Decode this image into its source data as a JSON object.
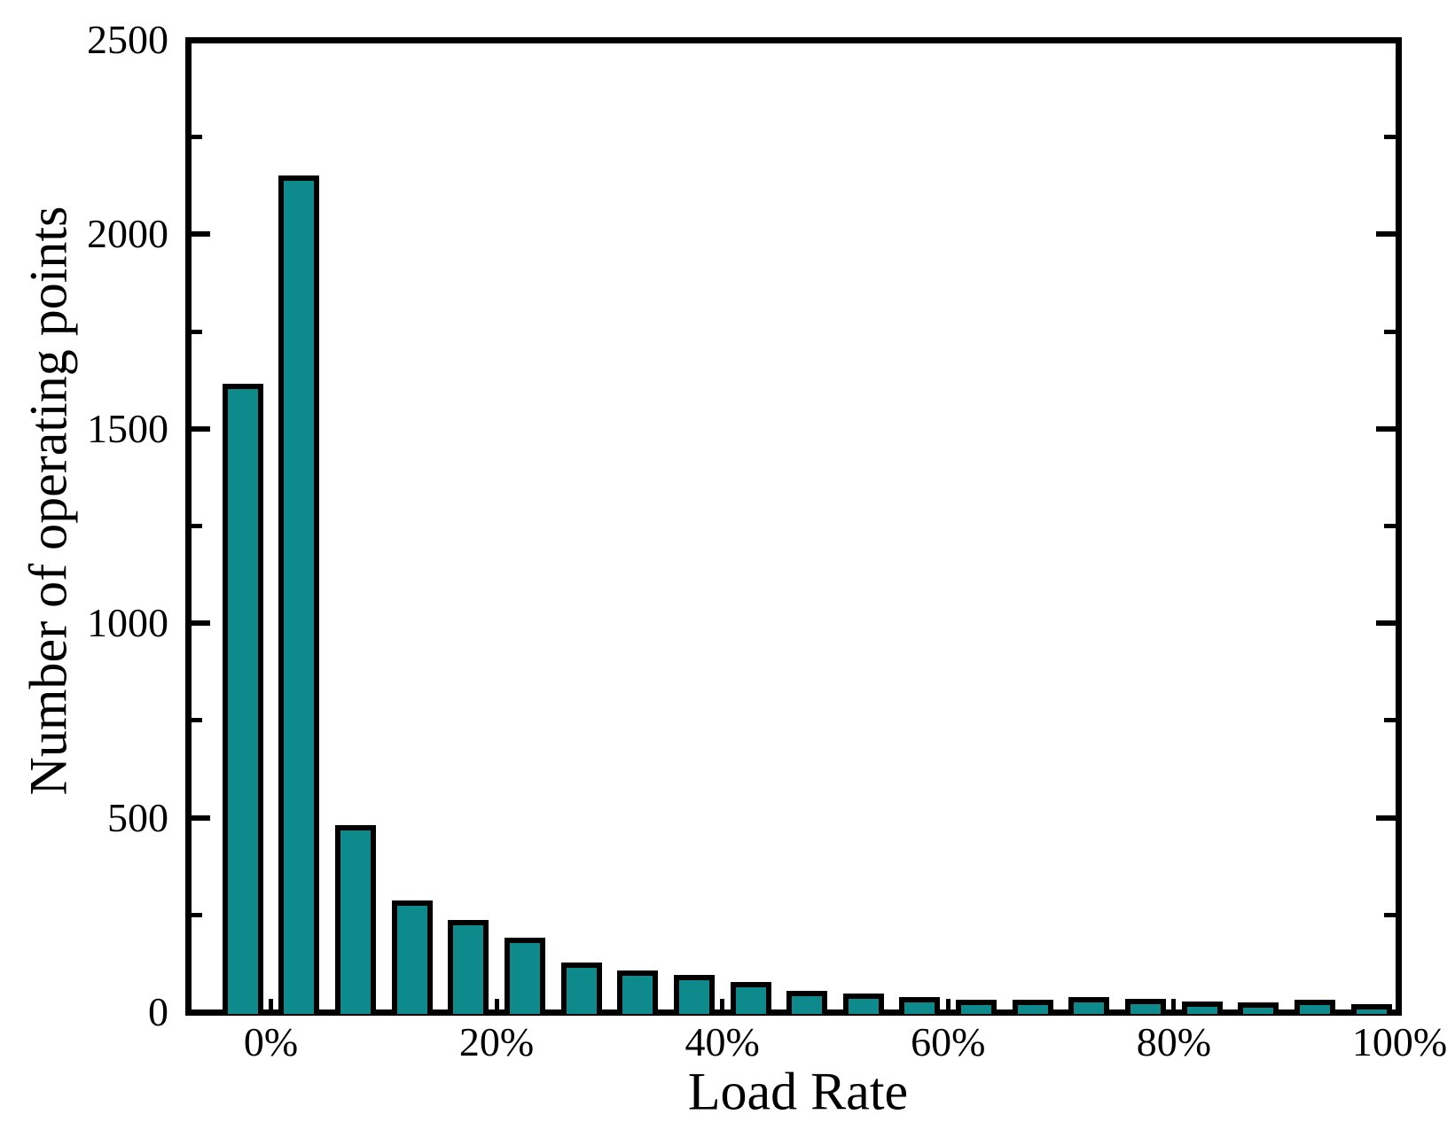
{
  "figure": {
    "background": "#ffffff",
    "frame_color": "#000000"
  },
  "chart_data": {
    "type": "bar",
    "title": "",
    "xlabel": "Load Rate",
    "ylabel": "Number of operating points",
    "bin_width_pct": 5,
    "bar_centers_pct": [
      -2.5,
      2.5,
      7.5,
      12.5,
      17.5,
      22.5,
      27.5,
      32.5,
      37.5,
      42.5,
      47.5,
      52.5,
      57.5,
      62.5,
      67.5,
      72.5,
      77.5,
      82.5,
      87.5,
      92.5,
      97.5
    ],
    "values": [
      1610,
      2145,
      475,
      280,
      230,
      185,
      120,
      100,
      90,
      70,
      48,
      42,
      32,
      24,
      26,
      33,
      27,
      21,
      18,
      24,
      13
    ],
    "x_ticks": [
      {
        "value": 0,
        "label": "0%"
      },
      {
        "value": 20,
        "label": "20%"
      },
      {
        "value": 40,
        "label": "40%"
      },
      {
        "value": 60,
        "label": "60%"
      },
      {
        "value": 80,
        "label": "80%"
      },
      {
        "value": 100,
        "label": "100%"
      }
    ],
    "y_ticks": [
      {
        "value": 0,
        "label": "0"
      },
      {
        "value": 500,
        "label": "500"
      },
      {
        "value": 1000,
        "label": "1000"
      },
      {
        "value": 1500,
        "label": "1500"
      },
      {
        "value": 2000,
        "label": "2000"
      },
      {
        "value": 2500,
        "label": "2500"
      }
    ],
    "y_minor_ticks": [
      250,
      750,
      1250,
      1750,
      2250
    ],
    "xlim": [
      -7.35,
      100.3
    ],
    "ylim": [
      0,
      2500
    ],
    "grid": false,
    "legend_position": "none",
    "bar_fill": "#0e8a8c",
    "bar_stroke": "#000000",
    "tick_direction": "in"
  }
}
